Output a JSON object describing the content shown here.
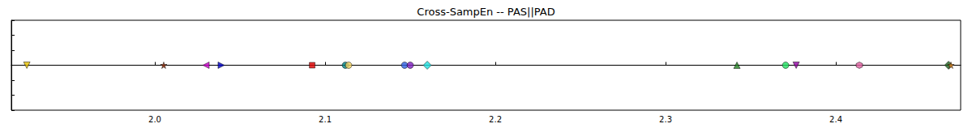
{
  "chart_data": {
    "type": "scatter",
    "title": "Cross-SampEn -- PAS||PAD",
    "xlim": [
      1.9157,
      2.4733
    ],
    "xticks": [
      {
        "value": 2,
        "label": "2.0"
      },
      2.1,
      2.2,
      2.3,
      2.4
    ],
    "ylim": [
      -0.06,
      0.06
    ],
    "yticks": [
      -0.06,
      -0.04,
      -0.02,
      0,
      0.02,
      0.04,
      0.06
    ],
    "tick_labels": "x",
    "grid": false,
    "series": [
      {
        "color": "#e6c000",
        "marker": "triangle_down",
        "x": [
          1.9248
        ],
        "values": [
          0
        ]
      },
      {
        "color": "#8b2500",
        "marker": "star",
        "x": [
          2.0052
        ],
        "values": [
          0
        ]
      },
      {
        "color": "#cc00cc",
        "marker": "triangle_left",
        "x": [
          2.03
        ],
        "values": [
          0
        ]
      },
      {
        "color": "#0000cc",
        "marker": "triangle_right",
        "x": [
          2.039
        ],
        "values": [
          0
        ]
      },
      {
        "color": "#dd0000",
        "marker": "square",
        "x": [
          2.0924
        ],
        "values": [
          0
        ]
      },
      {
        "color": "#008080",
        "marker": "circle",
        "x": [
          2.1119
        ],
        "values": [
          0
        ]
      },
      {
        "color": "#f0d060",
        "marker": "circle",
        "x": [
          2.1138
        ],
        "values": [
          0
        ]
      },
      {
        "color": "#3060e0",
        "marker": "circle",
        "x": [
          2.1467
        ],
        "values": [
          0
        ]
      },
      {
        "color": "#8020c0",
        "marker": "circle",
        "x": [
          2.15
        ],
        "values": [
          0
        ]
      },
      {
        "color": "#20e0e0",
        "marker": "diamond",
        "x": [
          2.16
        ],
        "values": [
          0
        ]
      },
      {
        "color": "#208020",
        "marker": "triangle",
        "x": [
          2.3419
        ],
        "values": [
          0
        ]
      },
      {
        "color": "#20e060",
        "marker": "circle",
        "x": [
          2.3705
        ],
        "values": [
          0
        ]
      },
      {
        "color": "#9000a0",
        "marker": "triangle_down",
        "x": [
          2.3767
        ],
        "values": [
          0
        ]
      },
      {
        "color": "#e060a0",
        "marker": "hexagon",
        "x": [
          2.4138
        ],
        "values": [
          0
        ]
      },
      {
        "color": "#206020",
        "marker": "diamond",
        "x": [
          2.4662
        ],
        "values": [
          0
        ]
      },
      {
        "color": "#e08020",
        "marker": "star",
        "x": [
          2.4676
        ],
        "values": [
          0
        ]
      }
    ]
  }
}
